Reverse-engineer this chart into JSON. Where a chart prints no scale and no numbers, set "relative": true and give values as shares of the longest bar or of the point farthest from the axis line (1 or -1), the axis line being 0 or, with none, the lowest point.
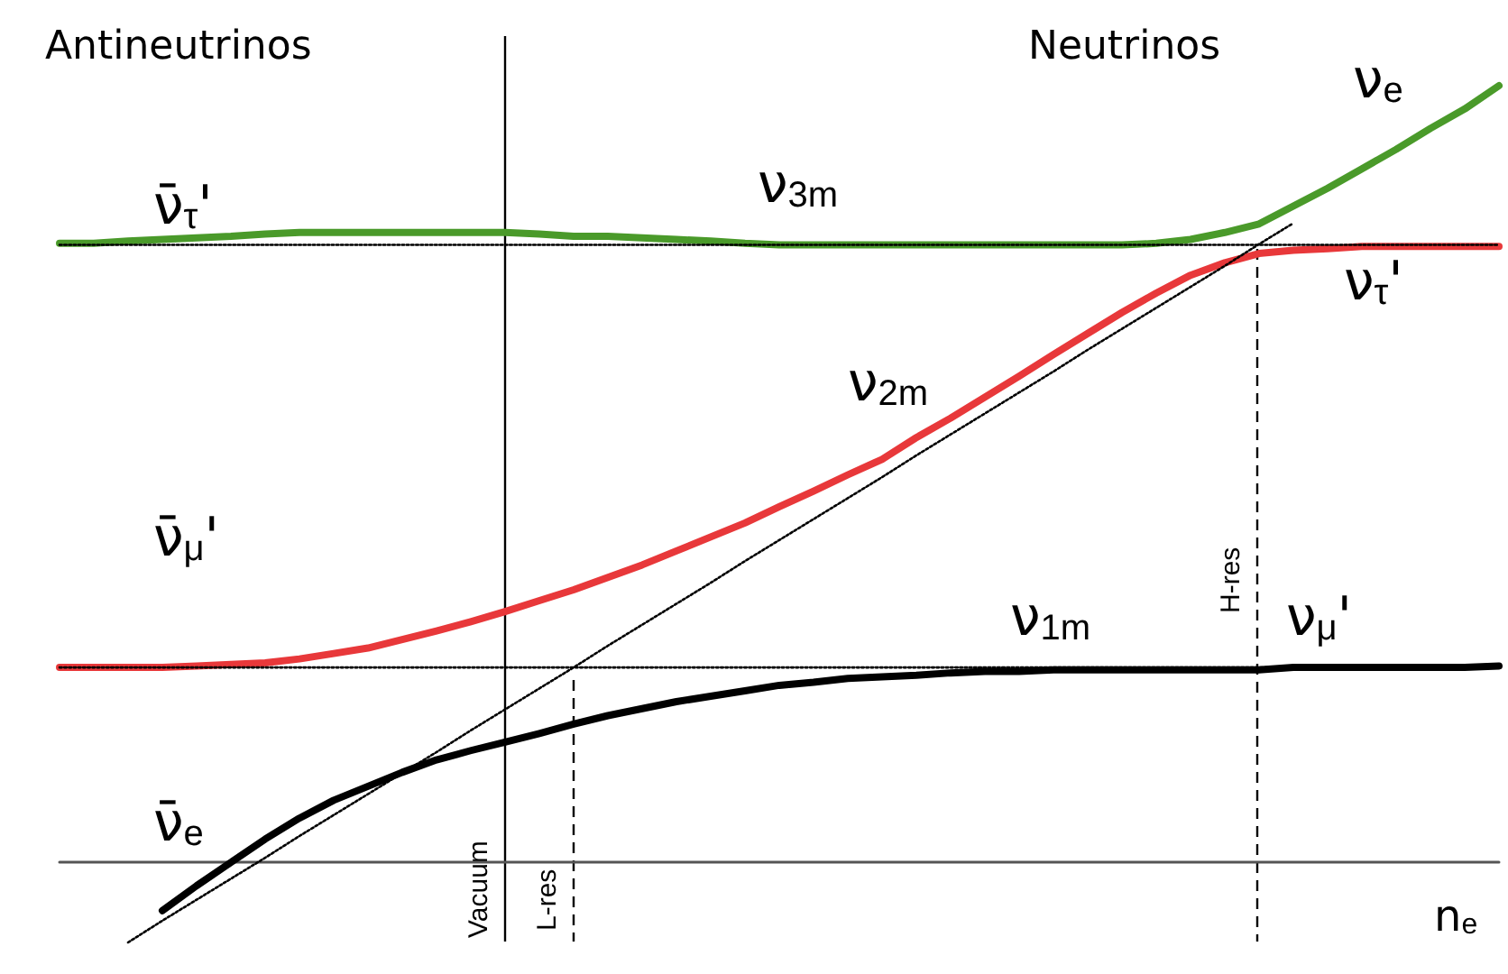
{
  "chart_data": {
    "type": "line",
    "relative": true,
    "xlabel": "n$_{e}$",
    "grid": false,
    "marker": "none",
    "categories": [
      null,
      null,
      null,
      null,
      null,
      null,
      null,
      null,
      null,
      null,
      null,
      null,
      null,
      null,
      null,
      null,
      null,
      null,
      null,
      null,
      null,
      null,
      null,
      null,
      null,
      null,
      null,
      null,
      null,
      null,
      null,
      null,
      null,
      null,
      null,
      null,
      null,
      null,
      null,
      null,
      null,
      null,
      null
    ],
    "series": [
      {
        "color": "#000000",
        "line_style": "dotted",
        "values": [
          0.795,
          0.795,
          0.795,
          0.795,
          0.795,
          0.795,
          0.795,
          0.795,
          0.795,
          0.795,
          0.795,
          0.795,
          0.795,
          0.795,
          0.795,
          0.795,
          0.795,
          0.795,
          0.795,
          0.795,
          0.795,
          0.795,
          0.795,
          0.795,
          0.795,
          0.795,
          0.795,
          0.795,
          0.795,
          0.795,
          0.795,
          0.795,
          0.795,
          0.795,
          0.795,
          0.795,
          0.795,
          0.795,
          0.795,
          0.795,
          0.795,
          0.795,
          0.795
        ]
      },
      {
        "color": "#000000",
        "line_style": "dotted",
        "values": [
          0.251,
          0.251,
          0.251,
          0.251,
          0.251,
          0.251,
          0.251,
          0.251,
          0.251,
          0.251,
          0.251,
          0.251,
          0.251,
          0.251,
          0.251,
          0.251,
          0.251,
          0.251,
          0.251,
          0.251,
          0.251,
          0.251,
          0.251,
          0.251,
          0.251,
          0.251,
          0.251,
          0.251,
          0.251,
          0.251,
          0.251,
          0.251,
          0.251,
          0.251,
          0.251,
          0.251,
          0.251,
          0.251,
          0.251,
          0.251,
          0.251,
          0.251,
          0.251
        ]
      },
      {
        "color": "#000000",
        "line_style": "dotted",
        "values": [
          null,
          null,
          -0.103,
          -0.075,
          -0.048,
          -0.021,
          0.006,
          0.034,
          0.061,
          0.088,
          0.115,
          0.142,
          0.17,
          0.197,
          0.224,
          0.251,
          0.279,
          0.306,
          0.333,
          0.36,
          0.388,
          0.415,
          0.442,
          0.469,
          0.496,
          0.524,
          0.551,
          0.578,
          0.605,
          0.632,
          0.66,
          0.687,
          0.714,
          0.741,
          0.768,
          0.796,
          0.823,
          null,
          null,
          null,
          null,
          null,
          null
        ]
      },
      {
        "color": "#4a9a2a",
        "line_style": "solid",
        "values": [
          0.797,
          0.797,
          0.8,
          0.802,
          0.804,
          0.806,
          0.809,
          0.811,
          0.811,
          0.811,
          0.811,
          0.811,
          0.811,
          0.811,
          0.809,
          0.806,
          0.806,
          0.804,
          0.802,
          0.8,
          0.797,
          0.795,
          0.795,
          0.795,
          0.795,
          0.795,
          0.795,
          0.795,
          0.795,
          0.795,
          0.795,
          0.795,
          0.797,
          0.802,
          0.811,
          0.822,
          0.845,
          0.868,
          0.893,
          0.918,
          0.945,
          0.97,
          1
        ]
      },
      {
        "color": "#e8383a",
        "line_style": "solid",
        "values": [
          0.251,
          0.251,
          0.251,
          0.251,
          0.253,
          0.255,
          0.257,
          0.262,
          0.269,
          0.276,
          0.287,
          0.298,
          0.31,
          0.323,
          0.337,
          0.351,
          0.367,
          0.383,
          0.401,
          0.419,
          0.437,
          0.458,
          0.478,
          0.499,
          0.519,
          0.547,
          0.572,
          0.599,
          0.626,
          0.654,
          0.681,
          0.708,
          0.733,
          0.756,
          0.772,
          0.784,
          0.788,
          0.79,
          0.793,
          0.793,
          0.793,
          0.793,
          0.793
        ]
      },
      {
        "color": "#000000",
        "line_style": "solid",
        "values": [
          null,
          null,
          null,
          -0.062,
          -0.03,
          0,
          0.03,
          0.057,
          0.08,
          0.098,
          0.116,
          0.132,
          0.144,
          0.155,
          0.166,
          0.178,
          0.189,
          0.198,
          0.207,
          0.214,
          0.221,
          0.228,
          0.232,
          0.237,
          0.239,
          0.241,
          0.244,
          0.246,
          0.246,
          0.248,
          0.248,
          0.248,
          0.248,
          0.248,
          0.248,
          0.248,
          0.251,
          0.251,
          0.251,
          0.251,
          0.251,
          0.251,
          0.253
        ]
      }
    ],
    "annotations": [
      "Antineutrinos",
      "Neutrinos",
      "ν̄$_{τ}$'",
      "ν$_{3m}$",
      "ν$_{e}$",
      "ν$_{τ}$'",
      "ν$_{2m}$",
      "ν̄$_{μ}$'",
      "ν$_{1m}$",
      "ν$_{μ}$'",
      "ν̄$_{e}$",
      "Vacuum",
      "L-res",
      "H-res"
    ]
  }
}
